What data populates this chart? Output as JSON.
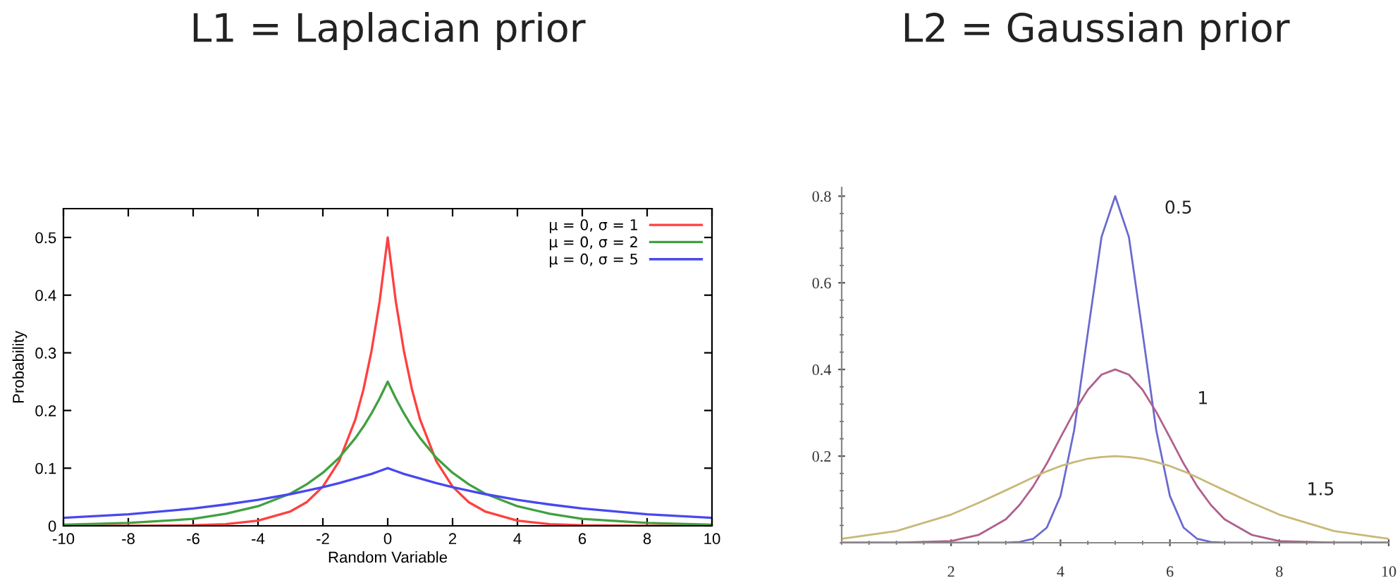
{
  "chart_data": [
    {
      "type": "line",
      "title": "L1 = Laplacian prior",
      "xlabel": "Random Variable",
      "ylabel": "Probability",
      "x": [
        -10,
        -8,
        -6,
        -5,
        -4,
        -3,
        -2.5,
        -2,
        -1.5,
        -1,
        -0.75,
        -0.5,
        -0.25,
        0,
        0.25,
        0.5,
        0.75,
        1,
        1.5,
        2,
        2.5,
        3,
        4,
        5,
        6,
        8,
        10
      ],
      "series": [
        {
          "name": "μ = 0, σ = 1",
          "color": "#ff4040",
          "values": [
            0.0,
            0.0,
            0.001,
            0.003,
            0.009,
            0.025,
            0.041,
            0.068,
            0.112,
            0.184,
            0.236,
            0.303,
            0.389,
            0.5,
            0.389,
            0.303,
            0.236,
            0.184,
            0.112,
            0.068,
            0.041,
            0.025,
            0.009,
            0.003,
            0.001,
            0.0,
            0.0
          ]
        },
        {
          "name": "μ = 0, σ = 2",
          "color": "#40a040",
          "values": [
            0.002,
            0.005,
            0.012,
            0.021,
            0.034,
            0.056,
            0.072,
            0.092,
            0.118,
            0.152,
            0.172,
            0.195,
            0.221,
            0.25,
            0.221,
            0.195,
            0.172,
            0.152,
            0.118,
            0.092,
            0.072,
            0.056,
            0.034,
            0.021,
            0.012,
            0.005,
            0.002
          ]
        },
        {
          "name": "μ = 0, σ = 5",
          "color": "#4848f0",
          "values": [
            0.014,
            0.02,
            0.03,
            0.037,
            0.045,
            0.055,
            0.061,
            0.067,
            0.074,
            0.082,
            0.086,
            0.09,
            0.095,
            0.1,
            0.095,
            0.09,
            0.086,
            0.082,
            0.074,
            0.067,
            0.061,
            0.055,
            0.045,
            0.037,
            0.03,
            0.02,
            0.014
          ]
        }
      ],
      "xlim": [
        -10,
        10
      ],
      "ylim": [
        0,
        0.55
      ],
      "xticks": [
        -10,
        -8,
        -6,
        -4,
        -2,
        0,
        2,
        4,
        6,
        8,
        10
      ],
      "yticks": [
        0,
        0.1,
        0.2,
        0.3,
        0.4,
        0.5
      ],
      "legend": "top right",
      "grid": false
    },
    {
      "type": "line",
      "title": "L2 = Gaussian prior",
      "x": [
        0,
        1,
        2,
        2.5,
        3,
        3.25,
        3.5,
        3.75,
        4,
        4.25,
        4.5,
        4.75,
        5,
        5.25,
        5.5,
        5.75,
        6,
        6.25,
        6.5,
        6.75,
        7,
        7.5,
        8,
        9,
        10
      ],
      "series": [
        {
          "name": "0.5",
          "color": "#6a6ad0",
          "values": [
            0,
            0,
            0,
            0,
            0,
            0.002,
            0.009,
            0.035,
            0.108,
            0.26,
            0.485,
            0.706,
            0.8,
            0.706,
            0.485,
            0.26,
            0.108,
            0.035,
            0.009,
            0.002,
            0,
            0,
            0,
            0,
            0
          ]
        },
        {
          "name": "1",
          "color": "#b0608c",
          "values": [
            0,
            0,
            0.004,
            0.018,
            0.054,
            0.087,
            0.13,
            0.183,
            0.243,
            0.302,
            0.353,
            0.388,
            0.4,
            0.388,
            0.353,
            0.302,
            0.243,
            0.183,
            0.13,
            0.087,
            0.054,
            0.018,
            0.004,
            0,
            0
          ]
        },
        {
          "name": "1.5",
          "color": "#c8b878",
          "values": [
            0.009,
            0.027,
            0.065,
            0.092,
            0.121,
            0.136,
            0.151,
            0.165,
            0.177,
            0.186,
            0.194,
            0.198,
            0.2,
            0.198,
            0.194,
            0.186,
            0.177,
            0.165,
            0.151,
            0.136,
            0.121,
            0.092,
            0.065,
            0.027,
            0.009
          ]
        }
      ],
      "xlim": [
        0,
        10
      ],
      "ylim": [
        0,
        0.82
      ],
      "xticks": [
        2,
        4,
        6,
        8,
        10
      ],
      "yticks": [
        0.2,
        0.4,
        0.6,
        0.8
      ],
      "grid": false
    }
  ]
}
